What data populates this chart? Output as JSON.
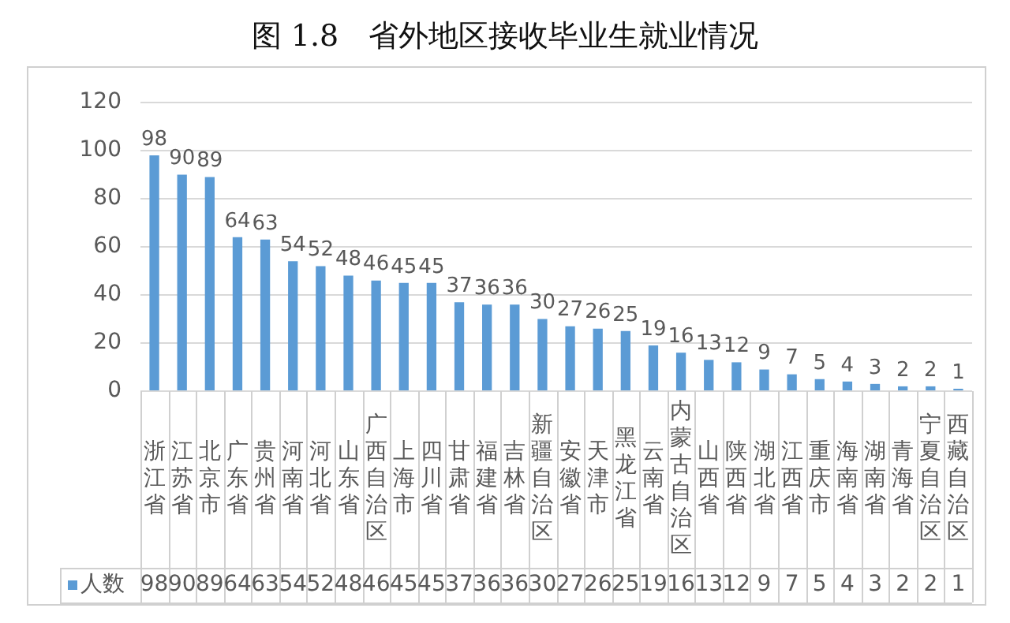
{
  "chart_data": {
    "type": "bar",
    "title": "图 1.8　省外地区接收毕业生就业情况",
    "categories": [
      "浙江省",
      "江苏省",
      "北京市",
      "广东省",
      "贵州省",
      "河南省",
      "河北省",
      "山东省",
      "广西自治区",
      "上海市",
      "四川省",
      "甘肃省",
      "福建省",
      "吉林省",
      "新疆自治区",
      "安徽省",
      "天津市",
      "黑龙江省",
      "云南省",
      "内蒙古自治区",
      "山西省",
      "陕西省",
      "湖北省",
      "江西省",
      "重庆市",
      "海南省",
      "湖南省",
      "青海省",
      "宁夏自治区",
      "西藏自治区"
    ],
    "series": [
      {
        "name": "人数",
        "color": "#5b9bd5",
        "values": [
          98,
          90,
          89,
          64,
          63,
          54,
          52,
          48,
          46,
          45,
          45,
          37,
          36,
          36,
          30,
          27,
          26,
          25,
          19,
          16,
          13,
          12,
          9,
          7,
          5,
          4,
          3,
          2,
          2,
          1
        ],
        "value_labels": [
          "98",
          "90",
          "89",
          "64",
          "63",
          "54",
          "52",
          "48",
          "46",
          "45",
          "45",
          "37",
          "36",
          "36",
          "30",
          "27",
          "26",
          "25",
          "19",
          "16",
          "13",
          "12",
          "9",
          "7",
          "5",
          "4",
          "3",
          "2",
          "2",
          "1"
        ]
      }
    ],
    "annotations": [
      "98",
      "90",
      "89",
      "64",
      "63",
      "54",
      "52",
      "48",
      "46",
      "45",
      "45",
      "37",
      "36",
      "36",
      "30",
      "27",
      "26",
      "25",
      "19",
      "16",
      "13",
      "12",
      "9",
      "7",
      "5",
      "4",
      "3",
      "2",
      "2",
      "1"
    ],
    "ylim": [
      0,
      120
    ],
    "yticks": [
      0,
      20,
      40,
      60,
      80,
      100,
      120
    ],
    "grid": "y",
    "legend": "bottom"
  }
}
